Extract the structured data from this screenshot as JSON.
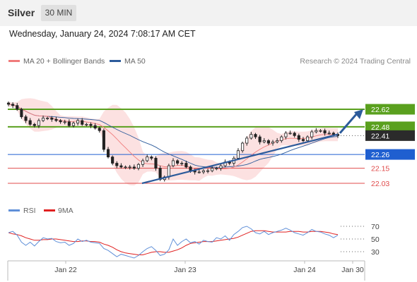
{
  "header": {
    "title": "Silver",
    "timeframe": "30 MIN",
    "datetime": "Wednesday, January 24, 2024 7:08:17 AM CET"
  },
  "legend": {
    "ma20": "MA 20 + Bollinger Bands",
    "ma50": "MA 50",
    "copyright": "Research © 2024 Trading Central"
  },
  "rsi_legend": {
    "rsi": "RSI",
    "ma9": "9MA"
  },
  "colors": {
    "ma20": "#f07b7b",
    "ma50": "#2c5b9b",
    "bollinger_fill": "#fbd9d9",
    "resistance": "#5aa01e",
    "support_blue": "#1f5fd0",
    "support_red": "#e04b4b",
    "last_price": "#2b2b2b",
    "rsi": "#5f8fd8",
    "rsi_ma": "#e02020"
  },
  "chart_data": [
    {
      "type": "candlestick",
      "title": "Silver",
      "timeframe": "30 MIN",
      "x_ticks": [
        "Jan 22",
        "Jan 23",
        "Jan 24",
        "Jan 30"
      ],
      "y_range": [
        22.0,
        22.7
      ],
      "last_price": 22.41,
      "levels": [
        {
          "value": 22.62,
          "color": "green",
          "kind": "resistance"
        },
        {
          "value": 22.48,
          "color": "green",
          "kind": "resistance"
        },
        {
          "value": 22.26,
          "color": "blue",
          "kind": "support"
        },
        {
          "value": 22.15,
          "color": "red",
          "kind": "support"
        },
        {
          "value": 22.03,
          "color": "red",
          "kind": "support"
        }
      ],
      "trendline": {
        "from_price": 22.03,
        "to_price": 22.42
      },
      "target_arrow": {
        "from_price": 22.43,
        "to_price": 22.62
      },
      "closes": [
        22.66,
        22.65,
        22.62,
        22.56,
        22.53,
        22.5,
        22.49,
        22.53,
        22.55,
        22.55,
        22.54,
        22.53,
        22.52,
        22.52,
        22.49,
        22.51,
        22.53,
        22.5,
        22.5,
        22.49,
        22.47,
        22.45,
        22.3,
        22.24,
        22.19,
        22.17,
        22.16,
        22.16,
        22.16,
        22.15,
        22.18,
        22.21,
        22.24,
        22.23,
        22.15,
        22.06,
        22.08,
        22.17,
        22.21,
        22.19,
        22.19,
        22.16,
        22.13,
        22.12,
        22.12,
        22.13,
        22.13,
        22.15,
        22.15,
        22.17,
        22.2,
        22.19,
        22.23,
        22.29,
        22.35,
        22.39,
        22.42,
        22.4,
        22.36,
        22.37,
        22.35,
        22.36,
        22.37,
        22.4,
        22.43,
        22.43,
        22.41,
        22.38,
        22.37,
        22.4,
        22.44,
        22.45,
        22.45,
        22.43,
        22.43,
        22.42,
        22.41
      ],
      "rsi": {
        "levels": [
          70,
          50,
          30
        ],
        "y_range": [
          10,
          85
        ],
        "values": [
          60,
          62,
          56,
          45,
          40,
          45,
          39,
          46,
          52,
          50,
          51,
          46,
          44,
          45,
          40,
          43,
          50,
          46,
          48,
          45,
          44,
          43,
          35,
          32,
          27,
          22,
          26,
          24,
          22,
          20,
          24,
          30,
          35,
          38,
          32,
          24,
          26,
          33,
          50,
          40,
          46,
          50,
          44,
          46,
          42,
          48,
          46,
          45,
          52,
          50,
          55,
          48,
          57,
          62,
          68,
          70,
          66,
          60,
          58,
          62,
          57,
          60,
          62,
          64,
          67,
          64,
          60,
          58,
          56,
          60,
          65,
          62,
          61,
          58,
          56,
          52,
          56
        ],
        "ma_values": [
          60,
          58,
          57,
          55,
          52,
          50,
          48,
          48,
          49,
          49,
          50,
          50,
          49,
          48,
          47,
          46,
          46,
          47,
          47,
          46,
          46,
          45,
          42,
          40,
          37,
          33,
          30,
          28,
          27,
          26,
          25,
          25,
          27,
          29,
          30,
          30,
          29,
          29,
          31,
          33,
          36,
          40,
          43,
          44,
          45,
          46,
          46,
          46,
          47,
          48,
          49,
          50,
          51,
          53,
          56,
          59,
          62,
          63,
          63,
          63,
          62,
          61,
          61,
          61,
          61,
          62,
          62,
          62,
          61,
          61,
          62,
          62,
          62,
          61,
          60,
          58,
          57
        ]
      }
    }
  ]
}
